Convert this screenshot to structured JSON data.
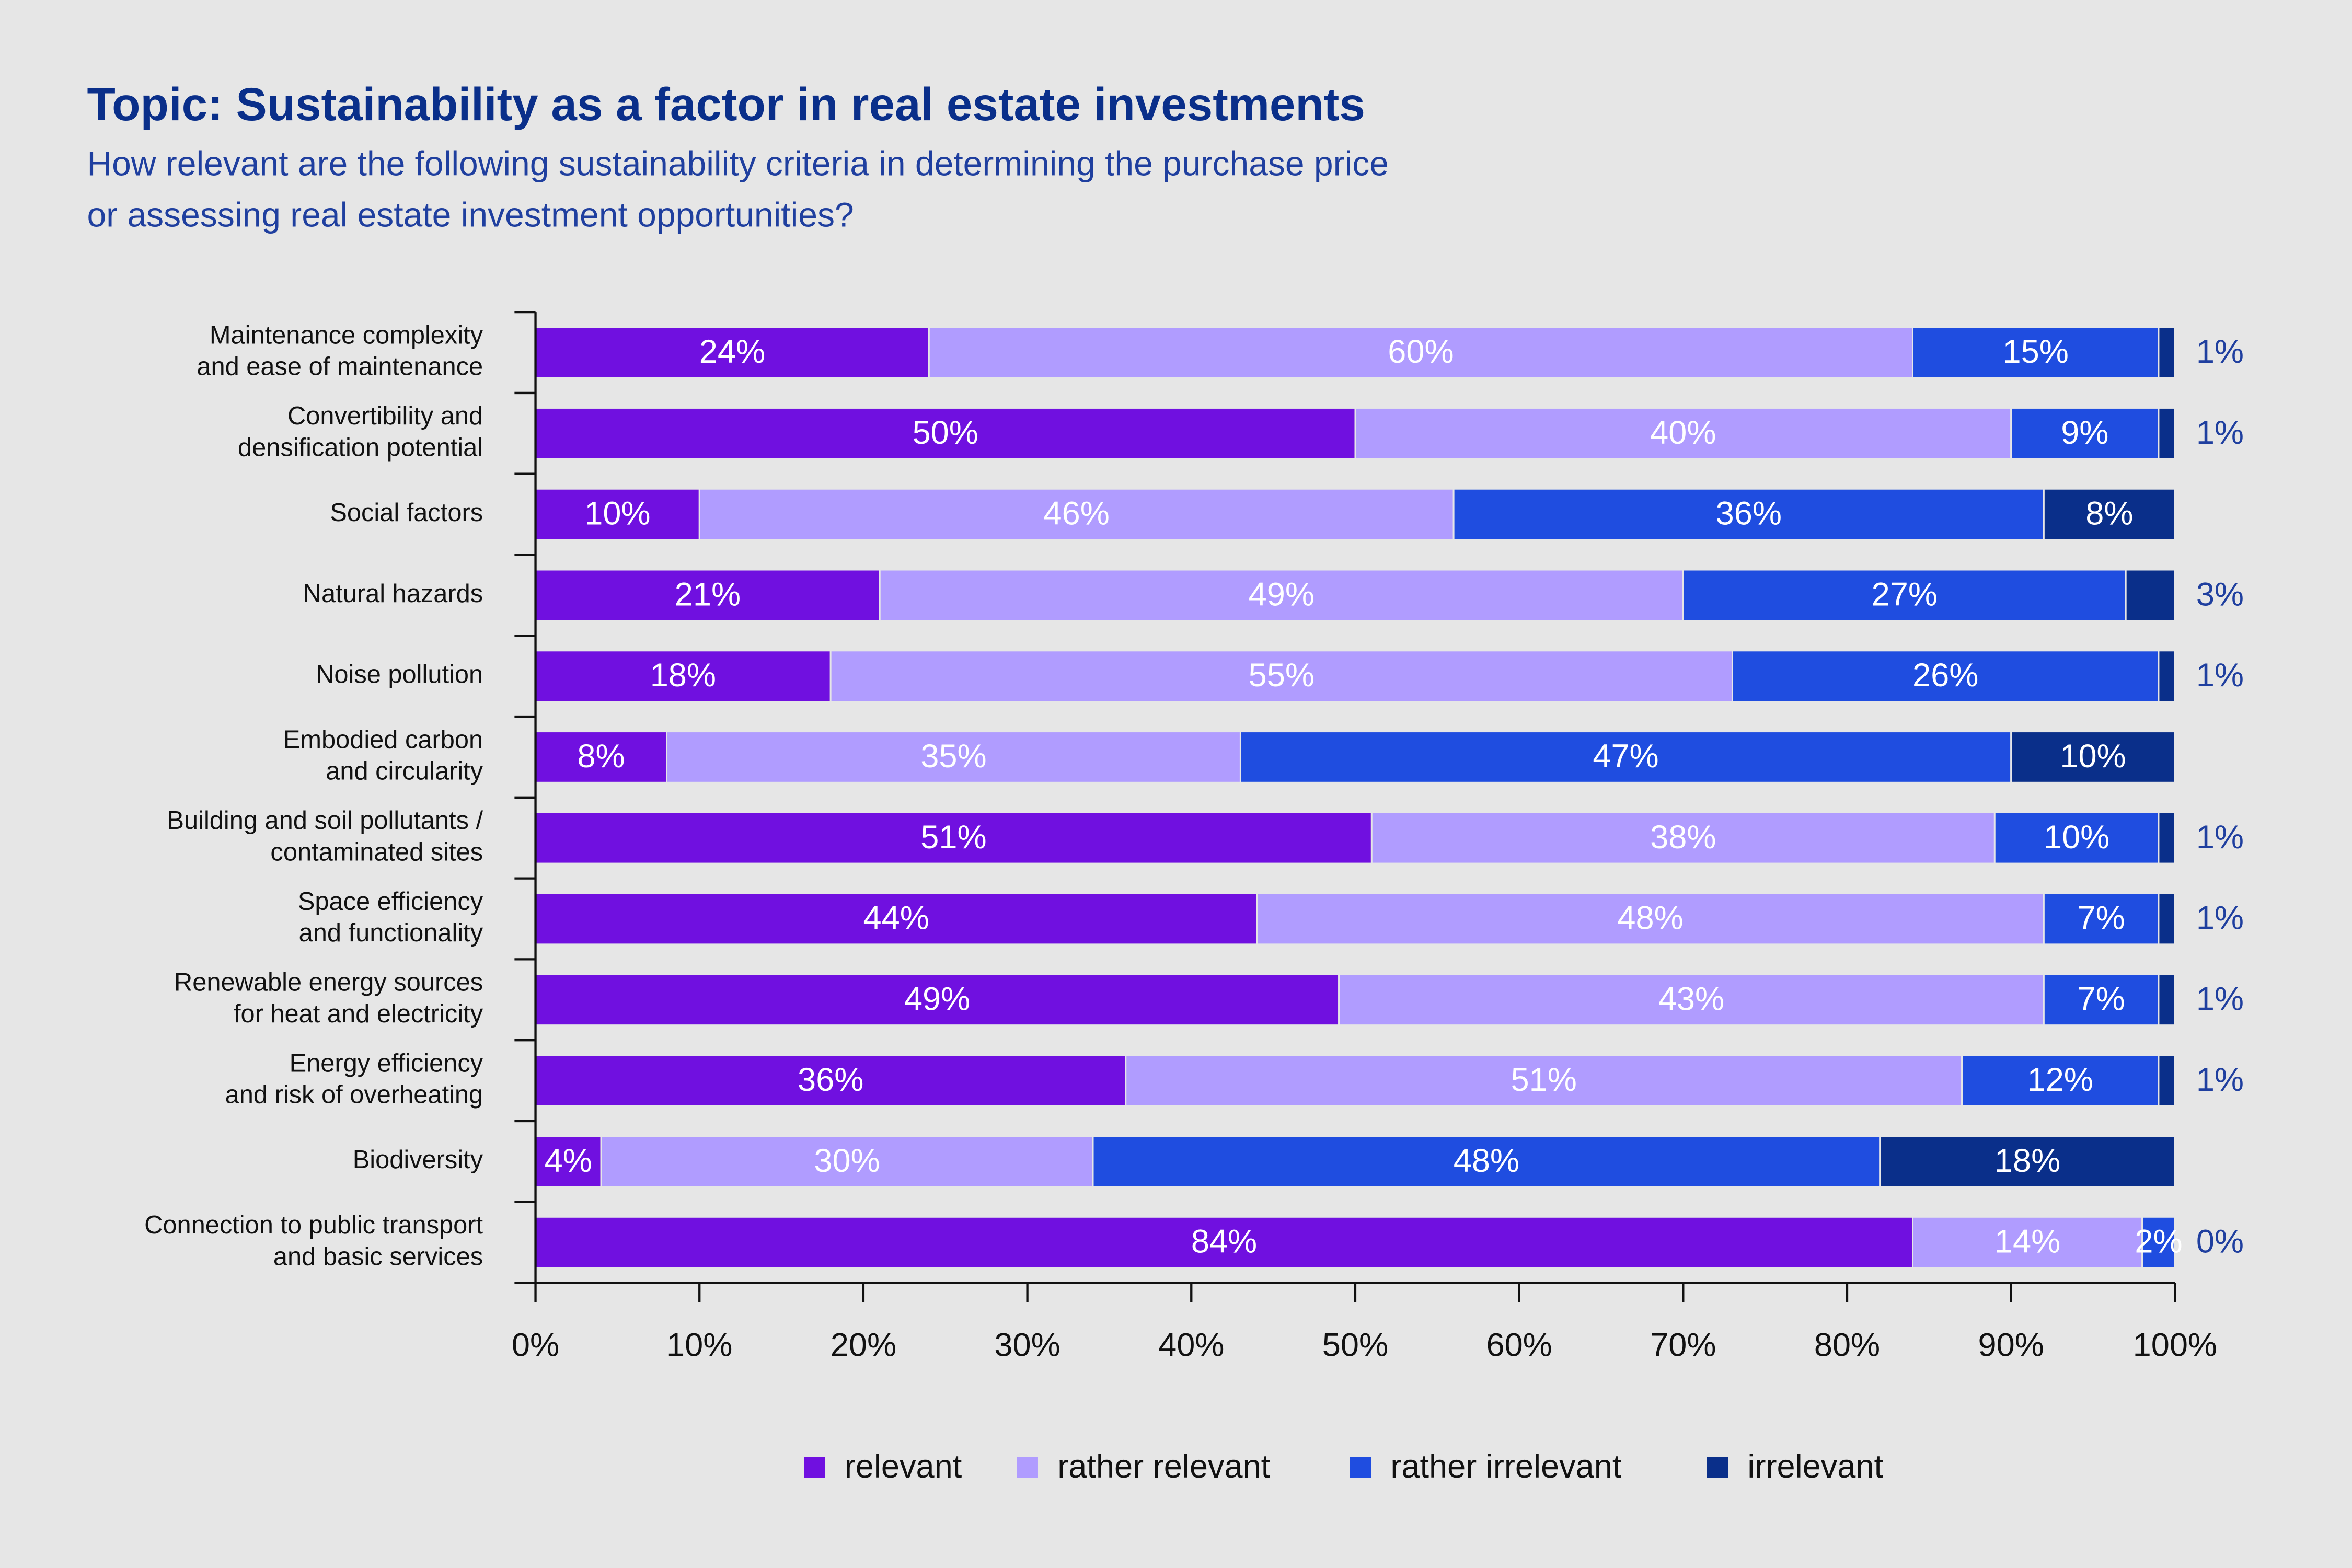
{
  "chart_data": {
    "type": "stacked-bar-horizontal",
    "title": "Topic: Sustainability as a factor in real estate investments",
    "subtitle": "How relevant are the following sustainability criteria in determining the purchase price\nor assessing real estate investment opportunities?",
    "categories": [
      "Maintenance complexity\nand ease of maintenance",
      "Convertibility and\ndensification potential",
      "Social factors",
      "Natural hazards",
      "Noise pollution",
      "Embodied carbon\nand circularity",
      "Building and soil pollutants /\ncontaminated sites",
      "Space efficiency\nand functionality",
      "Renewable energy sources\nfor heat and electricity",
      "Energy efficiency\nand risk of overheating",
      "Biodiversity",
      "Connection to public transport\nand basic services"
    ],
    "series": [
      {
        "name": "relevant",
        "color": "#7010e0",
        "values": [
          24,
          50,
          10,
          21,
          18,
          8,
          51,
          44,
          49,
          36,
          4,
          84
        ],
        "value_labels": [
          "24%",
          "50%",
          "10%",
          "21%",
          "18%",
          "8%",
          "51%",
          "44%",
          "49%",
          "36%",
          "4%",
          "84%"
        ]
      },
      {
        "name": "rather relevant",
        "color": "#b09cff",
        "values": [
          60,
          40,
          46,
          49,
          55,
          35,
          38,
          48,
          43,
          51,
          30,
          14
        ],
        "value_labels": [
          "60%",
          "40%",
          "46%",
          "49%",
          "55%",
          "35%",
          "38%",
          "48%",
          "43%",
          "51%",
          "30%",
          "14%"
        ]
      },
      {
        "name": "rather irrelevant",
        "color": "#1f4de0",
        "values": [
          15,
          9,
          36,
          27,
          26,
          47,
          10,
          7,
          7,
          12,
          48,
          2
        ],
        "value_labels": [
          "15%",
          "9%",
          "36%",
          "27%",
          "26%",
          "47%",
          "10%",
          "7%",
          "7%",
          "12%",
          "48%",
          "2%"
        ]
      },
      {
        "name": "irrelevant",
        "color": "#0a2f8a",
        "values": [
          1,
          1,
          8,
          3,
          1,
          10,
          1,
          1,
          1,
          1,
          18,
          0
        ],
        "value_labels": [
          "1%",
          "1%",
          "8%",
          "3%",
          "1%",
          "10%",
          "1%",
          "1%",
          "1%",
          "1%",
          "18%",
          "0%"
        ]
      }
    ],
    "xlim": [
      0,
      100
    ],
    "xticks": [
      {
        "value": 0,
        "label": "0%"
      },
      {
        "value": 10,
        "label": "10%"
      },
      {
        "value": 20,
        "label": "20%"
      },
      {
        "value": 30,
        "label": "30%"
      },
      {
        "value": 40,
        "label": "40%"
      },
      {
        "value": 50,
        "label": "50%"
      },
      {
        "value": 60,
        "label": "60%"
      },
      {
        "value": 70,
        "label": "70%"
      },
      {
        "value": 80,
        "label": "80%"
      },
      {
        "value": 90,
        "label": "90%"
      },
      {
        "value": 100,
        "label": "100%"
      }
    ],
    "legend": "bottom"
  }
}
